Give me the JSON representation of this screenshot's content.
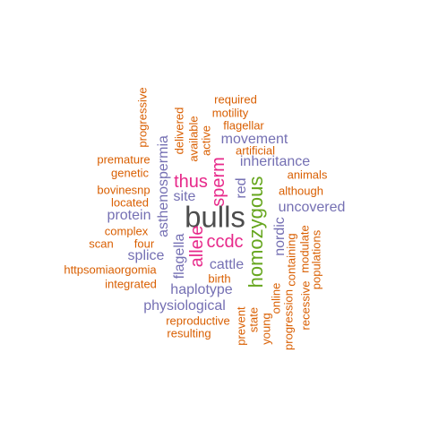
{
  "word_cloud": {
    "colors": {
      "dark": "#4d4d4d",
      "green": "#66a61e",
      "magenta": "#e7298a",
      "purple": "#7570b3",
      "orange": "#d95f02"
    },
    "words": [
      {
        "id": "bulls",
        "text": "bulls",
        "color": "dark"
      },
      {
        "id": "homozygous",
        "text": "homozygous",
        "color": "green"
      },
      {
        "id": "sperm",
        "text": "sperm",
        "color": "magenta"
      },
      {
        "id": "allele",
        "text": "allele",
        "color": "magenta"
      },
      {
        "id": "ccdc",
        "text": "ccdc",
        "color": "magenta"
      },
      {
        "id": "thus",
        "text": "thus",
        "color": "magenta"
      },
      {
        "id": "asthenospermia",
        "text": "asthenospermia",
        "color": "purple"
      },
      {
        "id": "movement",
        "text": "movement",
        "color": "purple"
      },
      {
        "id": "inheritance",
        "text": "inheritance",
        "color": "purple"
      },
      {
        "id": "uncovered",
        "text": "uncovered",
        "color": "purple"
      },
      {
        "id": "protein",
        "text": "protein",
        "color": "purple"
      },
      {
        "id": "site",
        "text": "site",
        "color": "purple"
      },
      {
        "id": "splice",
        "text": "splice",
        "color": "purple"
      },
      {
        "id": "flagella",
        "text": "flagella",
        "color": "purple"
      },
      {
        "id": "cattle",
        "text": "cattle",
        "color": "purple"
      },
      {
        "id": "haplotype",
        "text": "haplotype",
        "color": "purple"
      },
      {
        "id": "physiological",
        "text": "physiological",
        "color": "purple"
      },
      {
        "id": "nordic",
        "text": "nordic",
        "color": "purple"
      },
      {
        "id": "red",
        "text": "red",
        "color": "purple"
      },
      {
        "id": "progressive",
        "text": "progressive",
        "color": "orange"
      },
      {
        "id": "required",
        "text": "required",
        "color": "orange"
      },
      {
        "id": "motility",
        "text": "motility",
        "color": "orange"
      },
      {
        "id": "flagellar",
        "text": "flagellar",
        "color": "orange"
      },
      {
        "id": "delivered",
        "text": "delivered",
        "color": "orange"
      },
      {
        "id": "available",
        "text": "available",
        "color": "orange"
      },
      {
        "id": "active",
        "text": "active",
        "color": "orange"
      },
      {
        "id": "premature",
        "text": "premature",
        "color": "orange"
      },
      {
        "id": "genetic",
        "text": "genetic",
        "color": "orange"
      },
      {
        "id": "artificial",
        "text": "artificial",
        "color": "orange"
      },
      {
        "id": "animals",
        "text": "animals",
        "color": "orange"
      },
      {
        "id": "bovinesnp",
        "text": "bovinesnp",
        "color": "orange"
      },
      {
        "id": "although",
        "text": "although",
        "color": "orange"
      },
      {
        "id": "located",
        "text": "located",
        "color": "orange"
      },
      {
        "id": "complex",
        "text": "complex",
        "color": "orange"
      },
      {
        "id": "scan",
        "text": "scan",
        "color": "orange"
      },
      {
        "id": "four",
        "text": "four",
        "color": "orange"
      },
      {
        "id": "httpsomiaorgomia",
        "text": "httpsomiaorgomia",
        "color": "orange"
      },
      {
        "id": "integrated",
        "text": "integrated",
        "color": "orange"
      },
      {
        "id": "birth",
        "text": "birth",
        "color": "orange"
      },
      {
        "id": "reproductive",
        "text": "reproductive",
        "color": "orange"
      },
      {
        "id": "resulting",
        "text": "resulting",
        "color": "orange"
      },
      {
        "id": "prevent",
        "text": "prevent",
        "color": "orange"
      },
      {
        "id": "state",
        "text": "state",
        "color": "orange"
      },
      {
        "id": "young",
        "text": "young",
        "color": "orange"
      },
      {
        "id": "online",
        "text": "online",
        "color": "orange"
      },
      {
        "id": "progression",
        "text": "progression",
        "color": "orange"
      },
      {
        "id": "containing",
        "text": "containing",
        "color": "orange"
      },
      {
        "id": "recessive",
        "text": "recessive",
        "color": "orange"
      },
      {
        "id": "modulate",
        "text": "modulate",
        "color": "orange"
      },
      {
        "id": "populations",
        "text": "populations",
        "color": "orange"
      }
    ]
  }
}
